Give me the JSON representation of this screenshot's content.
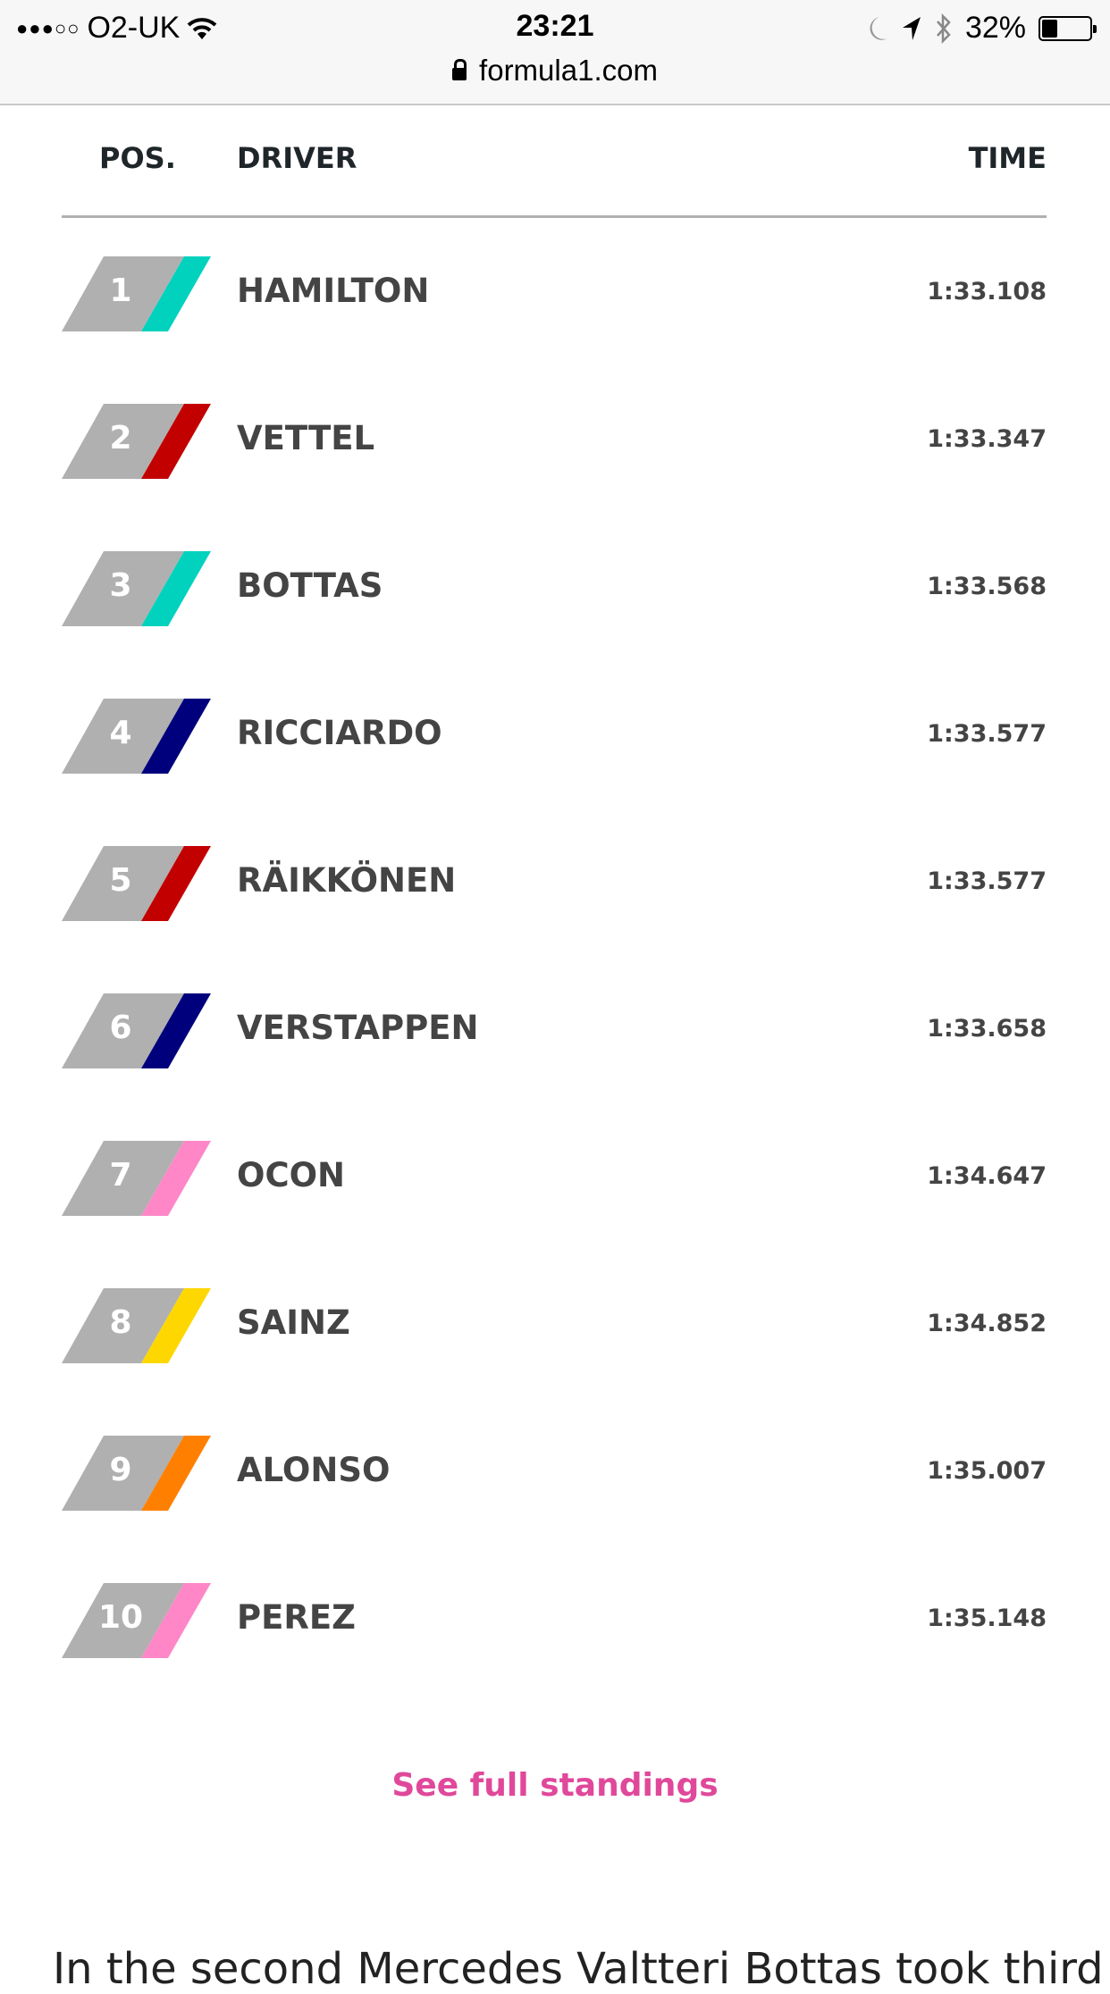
{
  "status_bar": {
    "signal_dots": "●●●○○",
    "carrier": "O2-UK",
    "time": "23:21",
    "battery": "32%",
    "battery_level": 0.32,
    "icons": [
      "wifi-icon",
      "moon-icon",
      "location-arrow-icon",
      "bluetooth-icon",
      "battery-icon"
    ]
  },
  "browser": {
    "url": "formula1.com",
    "icon": "lock-icon"
  },
  "table": {
    "headers": {
      "pos": "POS.",
      "driver": "DRIVER",
      "time": "TIME"
    },
    "rows": [
      {
        "pos": "1",
        "driver": "HAMILTON",
        "time": "1:33.108",
        "team_color": "#00d2be"
      },
      {
        "pos": "2",
        "driver": "VETTEL",
        "time": "1:33.347",
        "team_color": "#c30000"
      },
      {
        "pos": "3",
        "driver": "BOTTAS",
        "time": "1:33.568",
        "team_color": "#00d2be"
      },
      {
        "pos": "4",
        "driver": "RICCIARDO",
        "time": "1:33.577",
        "team_color": "#00007d"
      },
      {
        "pos": "5",
        "driver": "RÄIKKÖNEN",
        "time": "1:33.577",
        "team_color": "#c30000"
      },
      {
        "pos": "6",
        "driver": "VERSTAPPEN",
        "time": "1:33.658",
        "team_color": "#00007d"
      },
      {
        "pos": "7",
        "driver": "OCON",
        "time": "1:34.647",
        "team_color": "#ff87c8"
      },
      {
        "pos": "8",
        "driver": "SAINZ",
        "time": "1:34.852",
        "team_color": "#ffd700"
      },
      {
        "pos": "9",
        "driver": "ALONSO",
        "time": "1:35.007",
        "team_color": "#ff8000"
      },
      {
        "pos": "10",
        "driver": "PEREZ",
        "time": "1:35.148",
        "team_color": "#ff87c8"
      }
    ]
  },
  "see_full_standings": "See full standings",
  "article_text": "In the second Mercedes Valtteri Bottas took third",
  "colors": {
    "accent": "#e0489a",
    "badge_gray": "#b0b0b0",
    "text": "#444444"
  }
}
